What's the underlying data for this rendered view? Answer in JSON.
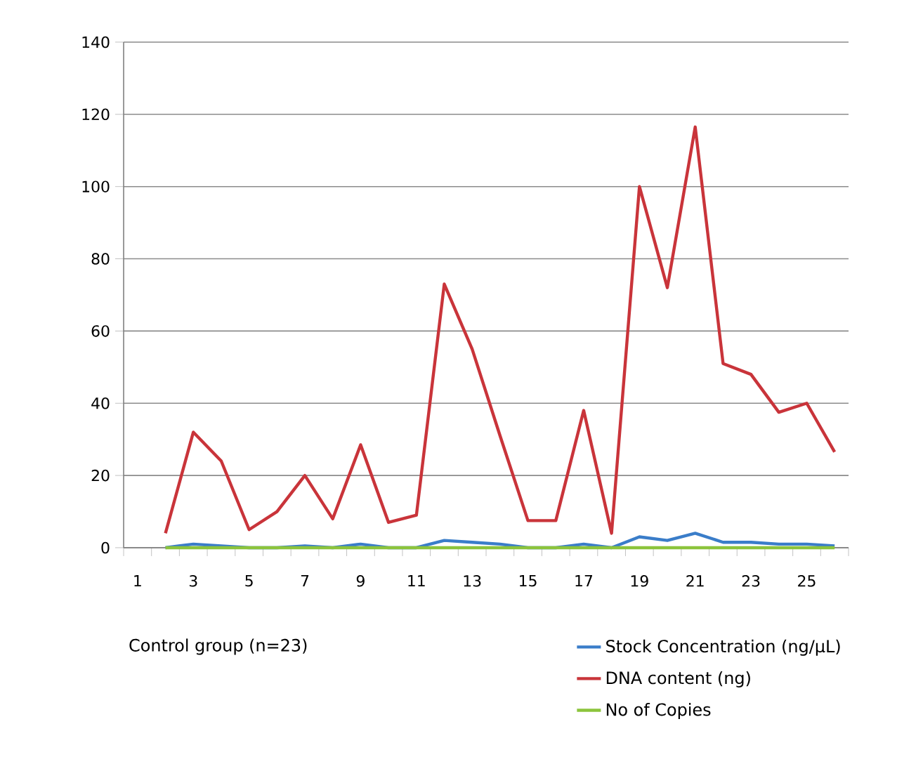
{
  "chart_data": {
    "type": "line",
    "xlabel": "Control group (n=23)",
    "categories": [
      "1",
      null,
      "3",
      null,
      "5",
      null,
      "7",
      null,
      "9",
      null,
      "11",
      null,
      "13",
      null,
      "15",
      null,
      "17",
      null,
      "19",
      null,
      "21",
      null,
      "23",
      null,
      "25",
      null
    ],
    "series": [
      {
        "name": "Stock Concentration (ng/µL)",
        "color": "#3a7dc9",
        "values": [
          null,
          0,
          1,
          0.5,
          0,
          0,
          0.5,
          0,
          1,
          0,
          0,
          2,
          1.5,
          1,
          0,
          0,
          1,
          0,
          3,
          2,
          4,
          1.5,
          1.5,
          1,
          1,
          0.5
        ]
      },
      {
        "name": "DNA content (ng)",
        "color": "#c9343a",
        "values": [
          null,
          4,
          32,
          24,
          5,
          10,
          20,
          8,
          28.5,
          7,
          9,
          73,
          55,
          31,
          7.5,
          7.5,
          38,
          4,
          100,
          72,
          116.5,
          51,
          48,
          37.5,
          40,
          26.5
        ]
      },
      {
        "name": "No of Copies",
        "color": "#8cc43c",
        "values": [
          null,
          0,
          0,
          0,
          0,
          0,
          0,
          0,
          0,
          0,
          0,
          0,
          0,
          0,
          0,
          0,
          0,
          0,
          0,
          0,
          0,
          0,
          0,
          0,
          0,
          0
        ]
      }
    ],
    "ylim": [
      0,
      140
    ],
    "yticks": [
      0,
      20,
      40,
      60,
      80,
      100,
      120,
      140
    ],
    "grid": "y",
    "legend": "bottom right",
    "marker": "none",
    "line_style": "solid"
  }
}
